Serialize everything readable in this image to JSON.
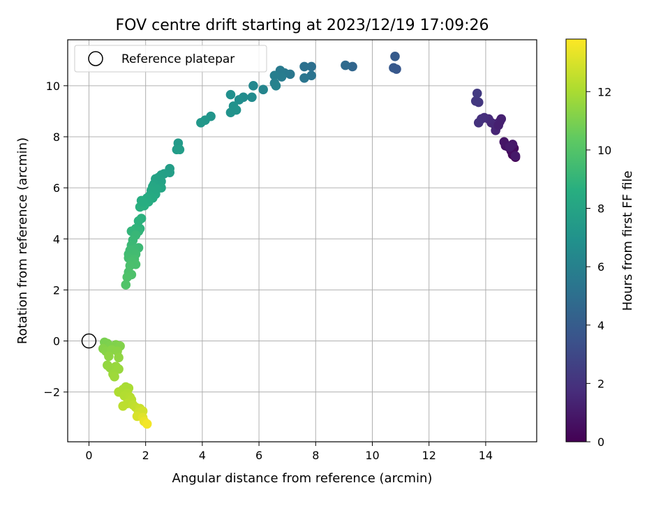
{
  "chart_data": {
    "type": "scatter",
    "title": "FOV centre drift starting at 2023/12/19 17:09:26",
    "xlabel": "Angular distance from reference (arcmin)",
    "ylabel": "Rotation from reference (arcmin)",
    "colorbar_label": "Hours from first FF file",
    "xlim": [
      -0.75,
      15.8
    ],
    "ylim": [
      -3.95,
      11.8
    ],
    "clim": [
      0,
      13.8
    ],
    "x_ticks": [
      0,
      2,
      4,
      6,
      8,
      10,
      12,
      14
    ],
    "y_ticks": [
      -2,
      0,
      2,
      4,
      6,
      8,
      10
    ],
    "colorbar_ticks": [
      0,
      2,
      4,
      6,
      8,
      10,
      12
    ],
    "grid": true,
    "colormap": "viridis",
    "legend": {
      "location": "top-left",
      "label": "Reference platepar",
      "point": {
        "x": 0,
        "y": 0
      }
    },
    "points": [
      {
        "x": 15.05,
        "y": 7.2,
        "t": 0.1
      },
      {
        "x": 14.95,
        "y": 7.3,
        "t": 0.3
      },
      {
        "x": 15.0,
        "y": 7.55,
        "t": 0.4
      },
      {
        "x": 14.9,
        "y": 7.45,
        "t": 0.5
      },
      {
        "x": 14.8,
        "y": 7.6,
        "t": 0.6
      },
      {
        "x": 14.7,
        "y": 7.65,
        "t": 0.7
      },
      {
        "x": 14.65,
        "y": 7.8,
        "t": 0.8
      },
      {
        "x": 14.95,
        "y": 7.7,
        "t": 0.9
      },
      {
        "x": 15.05,
        "y": 7.25,
        "t": 0.95
      },
      {
        "x": 14.85,
        "y": 7.6,
        "t": 1.0
      },
      {
        "x": 14.5,
        "y": 8.6,
        "t": 1.2
      },
      {
        "x": 14.55,
        "y": 8.7,
        "t": 1.3
      },
      {
        "x": 14.3,
        "y": 8.5,
        "t": 1.4
      },
      {
        "x": 14.35,
        "y": 8.25,
        "t": 1.5
      },
      {
        "x": 14.2,
        "y": 8.55,
        "t": 1.6
      },
      {
        "x": 14.1,
        "y": 8.7,
        "t": 1.7
      },
      {
        "x": 13.95,
        "y": 8.75,
        "t": 1.8
      },
      {
        "x": 13.85,
        "y": 8.7,
        "t": 1.9
      },
      {
        "x": 13.75,
        "y": 8.55,
        "t": 2.0
      },
      {
        "x": 14.45,
        "y": 8.45,
        "t": 1.25
      },
      {
        "x": 13.75,
        "y": 9.35,
        "t": 2.2
      },
      {
        "x": 13.65,
        "y": 9.4,
        "t": 2.3
      },
      {
        "x": 13.7,
        "y": 9.7,
        "t": 2.4
      },
      {
        "x": 10.85,
        "y": 10.65,
        "t": 3.8
      },
      {
        "x": 10.75,
        "y": 10.7,
        "t": 3.9
      },
      {
        "x": 10.8,
        "y": 11.15,
        "t": 4.0
      },
      {
        "x": 9.3,
        "y": 10.75,
        "t": 4.6
      },
      {
        "x": 9.05,
        "y": 10.8,
        "t": 4.8
      },
      {
        "x": 7.85,
        "y": 10.75,
        "t": 5.1
      },
      {
        "x": 7.6,
        "y": 10.75,
        "t": 5.2
      },
      {
        "x": 7.85,
        "y": 10.4,
        "t": 5.3
      },
      {
        "x": 7.6,
        "y": 10.3,
        "t": 5.4
      },
      {
        "x": 7.1,
        "y": 10.45,
        "t": 5.5
      },
      {
        "x": 6.9,
        "y": 10.5,
        "t": 5.6
      },
      {
        "x": 6.75,
        "y": 10.6,
        "t": 5.7
      },
      {
        "x": 6.8,
        "y": 10.35,
        "t": 5.8
      },
      {
        "x": 6.55,
        "y": 10.4,
        "t": 5.9
      },
      {
        "x": 6.55,
        "y": 10.1,
        "t": 6.0
      },
      {
        "x": 6.6,
        "y": 10.0,
        "t": 6.1
      },
      {
        "x": 6.15,
        "y": 9.85,
        "t": 6.3
      },
      {
        "x": 5.8,
        "y": 10.0,
        "t": 6.4
      },
      {
        "x": 5.75,
        "y": 9.55,
        "t": 6.6
      },
      {
        "x": 5.45,
        "y": 9.55,
        "t": 6.7
      },
      {
        "x": 5.3,
        "y": 9.45,
        "t": 6.8
      },
      {
        "x": 5.0,
        "y": 9.65,
        "t": 6.9
      },
      {
        "x": 5.1,
        "y": 9.2,
        "t": 7.0
      },
      {
        "x": 5.2,
        "y": 9.05,
        "t": 7.05
      },
      {
        "x": 5.0,
        "y": 8.95,
        "t": 7.1
      },
      {
        "x": 4.3,
        "y": 8.8,
        "t": 7.2
      },
      {
        "x": 4.1,
        "y": 8.65,
        "t": 7.3
      },
      {
        "x": 3.95,
        "y": 8.55,
        "t": 7.35
      },
      {
        "x": 3.15,
        "y": 7.75,
        "t": 7.5
      },
      {
        "x": 3.1,
        "y": 7.5,
        "t": 7.6
      },
      {
        "x": 3.2,
        "y": 7.5,
        "t": 7.65
      },
      {
        "x": 2.85,
        "y": 6.75,
        "t": 7.7
      },
      {
        "x": 2.85,
        "y": 6.6,
        "t": 7.75
      },
      {
        "x": 2.65,
        "y": 6.55,
        "t": 7.8
      },
      {
        "x": 2.55,
        "y": 6.5,
        "t": 7.85
      },
      {
        "x": 2.45,
        "y": 6.4,
        "t": 7.9
      },
      {
        "x": 2.55,
        "y": 6.25,
        "t": 7.95
      },
      {
        "x": 2.35,
        "y": 6.35,
        "t": 8.0
      },
      {
        "x": 2.45,
        "y": 6.1,
        "t": 8.05
      },
      {
        "x": 2.3,
        "y": 6.15,
        "t": 8.1
      },
      {
        "x": 2.55,
        "y": 6.0,
        "t": 8.15
      },
      {
        "x": 2.25,
        "y": 6.05,
        "t": 8.2
      },
      {
        "x": 2.4,
        "y": 5.95,
        "t": 8.25
      },
      {
        "x": 2.2,
        "y": 5.9,
        "t": 8.3
      },
      {
        "x": 2.35,
        "y": 5.75,
        "t": 8.35
      },
      {
        "x": 2.15,
        "y": 5.7,
        "t": 8.4
      },
      {
        "x": 2.25,
        "y": 5.6,
        "t": 8.45
      },
      {
        "x": 2.05,
        "y": 5.6,
        "t": 8.5
      },
      {
        "x": 2.1,
        "y": 5.45,
        "t": 8.55
      },
      {
        "x": 1.85,
        "y": 5.5,
        "t": 8.6
      },
      {
        "x": 1.95,
        "y": 5.3,
        "t": 8.7
      },
      {
        "x": 1.8,
        "y": 5.25,
        "t": 8.75
      },
      {
        "x": 1.9,
        "y": 5.45,
        "t": 8.65
      },
      {
        "x": 1.85,
        "y": 4.8,
        "t": 8.8
      },
      {
        "x": 1.75,
        "y": 4.7,
        "t": 8.85
      },
      {
        "x": 1.8,
        "y": 4.4,
        "t": 8.9
      },
      {
        "x": 1.65,
        "y": 4.4,
        "t": 8.95
      },
      {
        "x": 1.75,
        "y": 4.3,
        "t": 9.0
      },
      {
        "x": 1.5,
        "y": 4.3,
        "t": 9.05
      },
      {
        "x": 1.65,
        "y": 4.15,
        "t": 9.2
      },
      {
        "x": 1.55,
        "y": 3.95,
        "t": 9.25
      },
      {
        "x": 1.5,
        "y": 3.75,
        "t": 9.3
      },
      {
        "x": 1.75,
        "y": 3.65,
        "t": 9.35
      },
      {
        "x": 1.6,
        "y": 3.6,
        "t": 9.4
      },
      {
        "x": 1.45,
        "y": 3.55,
        "t": 9.45
      },
      {
        "x": 1.4,
        "y": 3.4,
        "t": 9.5
      },
      {
        "x": 1.65,
        "y": 3.4,
        "t": 9.55
      },
      {
        "x": 1.4,
        "y": 3.25,
        "t": 9.6
      },
      {
        "x": 1.6,
        "y": 3.2,
        "t": 9.65
      },
      {
        "x": 1.5,
        "y": 3.1,
        "t": 9.7
      },
      {
        "x": 1.65,
        "y": 3.0,
        "t": 9.75
      },
      {
        "x": 1.45,
        "y": 2.95,
        "t": 9.8
      },
      {
        "x": 1.4,
        "y": 2.7,
        "t": 9.85
      },
      {
        "x": 1.5,
        "y": 2.6,
        "t": 9.9
      },
      {
        "x": 1.35,
        "y": 2.5,
        "t": 9.95
      },
      {
        "x": 1.3,
        "y": 2.2,
        "t": 10.0
      },
      {
        "x": 0.55,
        "y": -0.05,
        "t": 11.0
      },
      {
        "x": 0.65,
        "y": -0.1,
        "t": 11.05
      },
      {
        "x": 0.75,
        "y": -0.2,
        "t": 11.1
      },
      {
        "x": 0.95,
        "y": -0.15,
        "t": 11.15
      },
      {
        "x": 1.1,
        "y": -0.2,
        "t": 11.2
      },
      {
        "x": 0.5,
        "y": -0.3,
        "t": 11.25
      },
      {
        "x": 0.6,
        "y": -0.4,
        "t": 11.3
      },
      {
        "x": 0.8,
        "y": -0.35,
        "t": 11.35
      },
      {
        "x": 1.0,
        "y": -0.4,
        "t": 11.4
      },
      {
        "x": 0.7,
        "y": -0.6,
        "t": 11.45
      },
      {
        "x": 1.05,
        "y": -0.65,
        "t": 11.5
      },
      {
        "x": 0.65,
        "y": -0.95,
        "t": 11.55
      },
      {
        "x": 0.75,
        "y": -1.05,
        "t": 11.6
      },
      {
        "x": 0.95,
        "y": -1.0,
        "t": 11.65
      },
      {
        "x": 1.05,
        "y": -1.1,
        "t": 11.7
      },
      {
        "x": 0.85,
        "y": -1.3,
        "t": 11.75
      },
      {
        "x": 0.9,
        "y": -1.4,
        "t": 11.8
      },
      {
        "x": 1.3,
        "y": -1.8,
        "t": 12.0
      },
      {
        "x": 1.4,
        "y": -1.85,
        "t": 12.05
      },
      {
        "x": 1.2,
        "y": -1.9,
        "t": 12.1
      },
      {
        "x": 1.05,
        "y": -2.0,
        "t": 12.15
      },
      {
        "x": 1.35,
        "y": -2.05,
        "t": 12.2
      },
      {
        "x": 1.25,
        "y": -2.15,
        "t": 12.25
      },
      {
        "x": 1.45,
        "y": -2.2,
        "t": 12.3
      },
      {
        "x": 1.5,
        "y": -2.3,
        "t": 12.35
      },
      {
        "x": 1.35,
        "y": -2.45,
        "t": 12.4
      },
      {
        "x": 1.2,
        "y": -2.55,
        "t": 12.45
      },
      {
        "x": 1.55,
        "y": -2.5,
        "t": 12.5
      },
      {
        "x": 1.65,
        "y": -2.6,
        "t": 12.6
      },
      {
        "x": 1.8,
        "y": -2.65,
        "t": 12.7
      },
      {
        "x": 1.75,
        "y": -2.8,
        "t": 12.8
      },
      {
        "x": 1.9,
        "y": -2.75,
        "t": 12.9
      },
      {
        "x": 1.7,
        "y": -2.95,
        "t": 13.0
      },
      {
        "x": 1.9,
        "y": -3.0,
        "t": 13.2
      },
      {
        "x": 1.95,
        "y": -3.15,
        "t": 13.4
      },
      {
        "x": 2.05,
        "y": -3.25,
        "t": 13.6
      }
    ]
  }
}
